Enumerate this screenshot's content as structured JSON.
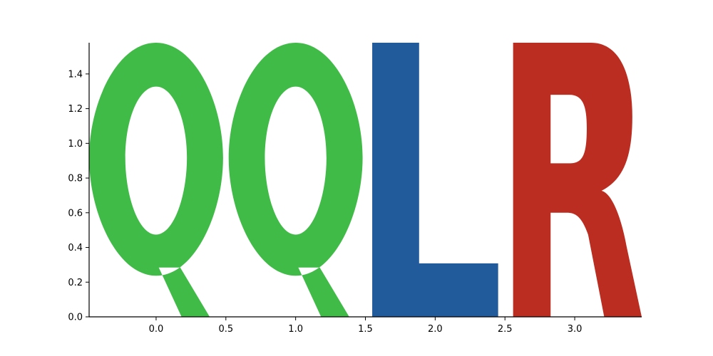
{
  "chart_data": {
    "type": "sequence-logo",
    "title": "",
    "xlabel": "",
    "ylabel": "",
    "xlim": [
      -0.48,
      3.48
    ],
    "ylim": [
      0.0,
      1.58
    ],
    "x_ticks": [
      0.0,
      0.5,
      1.0,
      1.5,
      2.0,
      2.5,
      3.0
    ],
    "x_tick_labels": [
      "0.0",
      "0.5",
      "1.0",
      "1.5",
      "2.0",
      "2.5",
      "3.0"
    ],
    "y_ticks": [
      0.0,
      0.2,
      0.4,
      0.6,
      0.8,
      1.0,
      1.2,
      1.4
    ],
    "y_tick_labels": [
      "0.0",
      "0.2",
      "0.4",
      "0.6",
      "0.8",
      "1.0",
      "1.2",
      "1.4"
    ],
    "grid": false,
    "spines": [
      "left",
      "bottom"
    ],
    "letters": [
      {
        "position": 0,
        "letter": "Q",
        "height": 1.58,
        "color": "#41BB48"
      },
      {
        "position": 1,
        "letter": "Q",
        "height": 1.58,
        "color": "#41BB48"
      },
      {
        "position": 2,
        "letter": "L",
        "height": 1.58,
        "color": "#225B9C"
      },
      {
        "position": 3,
        "letter": "R",
        "height": 1.58,
        "color": "#BB2D20"
      }
    ]
  }
}
